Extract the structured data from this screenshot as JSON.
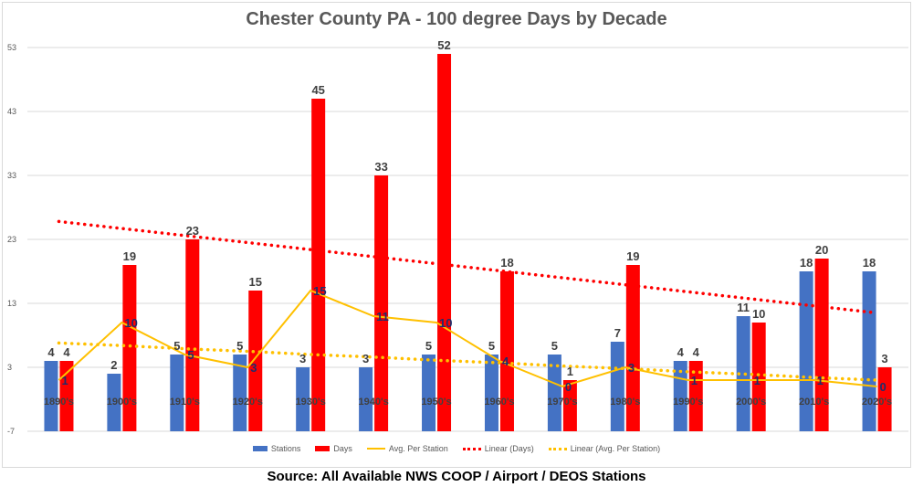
{
  "chart_data": {
    "type": "bar",
    "title": "Chester County PA - 100 degree Days by Decade",
    "categories": [
      "1890's",
      "1900's",
      "1910's",
      "1920's",
      "1930's",
      "1940's",
      "1950's",
      "1960's",
      "1970's",
      "1980's",
      "1990's",
      "2000's",
      "2010's",
      "2020's"
    ],
    "ylim": [
      -7,
      53
    ],
    "yticks": [
      -7,
      3,
      13,
      23,
      33,
      43,
      53
    ],
    "grid": true,
    "legend_position": "bottom",
    "series": [
      {
        "name": "Stations",
        "type": "bar",
        "color": "#4472c4",
        "values": [
          4,
          2,
          5,
          5,
          3,
          3,
          5,
          5,
          5,
          7,
          4,
          11,
          18,
          18
        ]
      },
      {
        "name": "Days",
        "type": "bar",
        "color": "#ff0000",
        "values": [
          4,
          19,
          23,
          15,
          45,
          33,
          52,
          18,
          1,
          19,
          4,
          10,
          20,
          3
        ]
      },
      {
        "name": "Avg. Per Station",
        "type": "line",
        "color": "#ffc000",
        "values": [
          1,
          10,
          5,
          3,
          15,
          11,
          10,
          4,
          0,
          3,
          1,
          1,
          1,
          0
        ]
      },
      {
        "name": "Linear (Days)",
        "type": "trendline",
        "color": "#ff0000",
        "values": [
          25.8,
          24.7,
          23.6,
          22.5,
          21.4,
          20.3,
          19.2,
          18.1,
          17.0,
          15.9,
          14.8,
          13.7,
          12.6,
          11.5
        ]
      },
      {
        "name": "Linear (Avg. Per Station)",
        "type": "trendline",
        "color": "#ffc000",
        "values": [
          6.8,
          6.4,
          5.9,
          5.5,
          5.0,
          4.6,
          4.1,
          3.7,
          3.2,
          2.8,
          2.3,
          1.9,
          1.4,
          1.0
        ]
      }
    ]
  },
  "source": "Source: All Available NWS COOP / Airport / DEOS Stations"
}
